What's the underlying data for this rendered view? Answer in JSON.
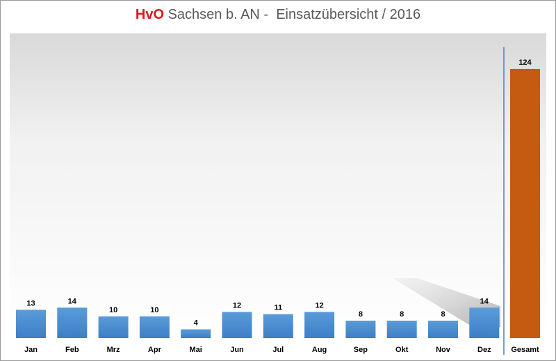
{
  "title": {
    "brand": "HvO",
    "rest": " Sachsen b. AN -  Einsatzübersicht / 2016",
    "brand_color": "#e0161f"
  },
  "chart_data": {
    "type": "bar",
    "title": "HvO Sachsen b. AN -  Einsatzübersicht / 2016",
    "xlabel": "",
    "ylabel": "",
    "ylim": [
      0,
      124
    ],
    "categories": [
      "Jan",
      "Feb",
      "Mrz",
      "Apr",
      "Mai",
      "Jun",
      "Jul",
      "Aug",
      "Sep",
      "Okt",
      "Nov",
      "Dez",
      "Gesamt"
    ],
    "values": [
      13,
      14,
      10,
      10,
      4,
      12,
      11,
      12,
      8,
      8,
      8,
      14,
      124
    ],
    "bar_colors": [
      "#4a8fd4",
      "#4a8fd4",
      "#4a8fd4",
      "#4a8fd4",
      "#4a8fd4",
      "#4a8fd4",
      "#4a8fd4",
      "#4a8fd4",
      "#4a8fd4",
      "#4a8fd4",
      "#4a8fd4",
      "#4a8fd4",
      "#c55a11"
    ],
    "separator_color": "#4a7fc4",
    "grid": false,
    "legend": "none"
  }
}
